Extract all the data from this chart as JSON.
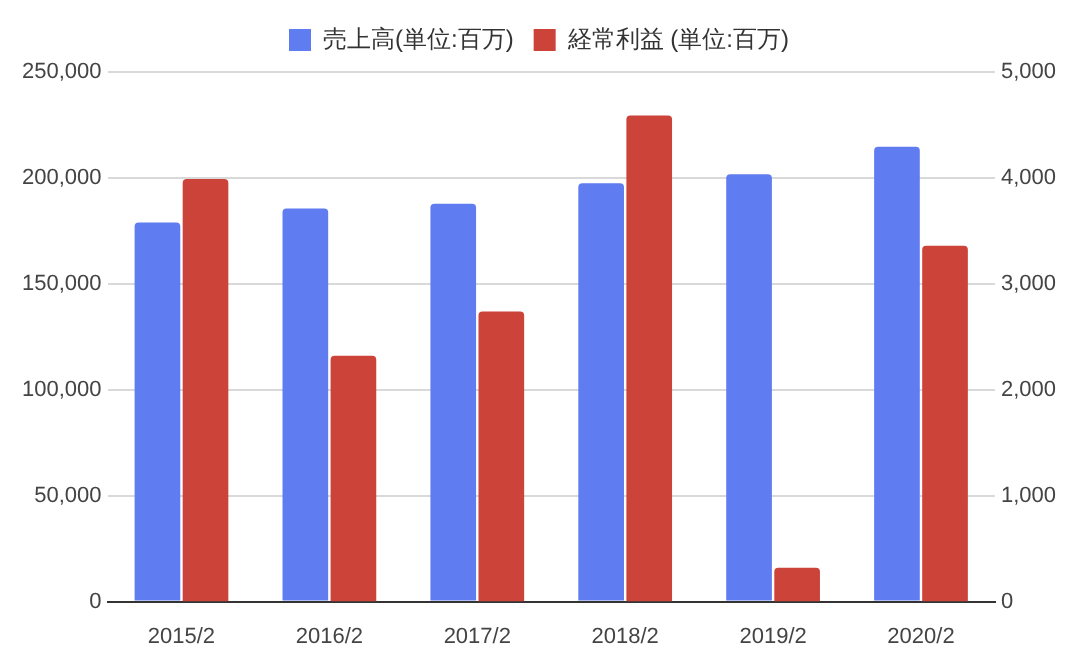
{
  "chart_data": {
    "type": "bar",
    "categories": [
      "2015/2",
      "2016/2",
      "2017/2",
      "2018/2",
      "2019/2",
      "2020/2"
    ],
    "series": [
      {
        "name": "売上高(単位:百万)",
        "color": "#5f7cf0",
        "values": [
          179000,
          185600,
          187800,
          197500,
          201700,
          214700
        ]
      },
      {
        "name": "経常利益 (単位:百万)",
        "color": "#cc4339",
        "axis": "y2",
        "values": [
          3990,
          2320,
          2740,
          4590,
          320,
          3360
        ]
      }
    ],
    "ylim": [
      0,
      250000
    ],
    "yticks": [
      {
        "value": 0,
        "label": "0"
      },
      {
        "value": 50000,
        "label": "50,000"
      },
      {
        "value": 100000,
        "label": "100,000"
      },
      {
        "value": 150000,
        "label": "150,000"
      },
      {
        "value": 200000,
        "label": "200,000"
      },
      {
        "value": 250000,
        "label": "250,000"
      }
    ],
    "y2lim": [
      0,
      5000
    ],
    "y2ticks": [
      {
        "value": 0,
        "label": "0"
      },
      {
        "value": 1000,
        "label": "1,000"
      },
      {
        "value": 2000,
        "label": "2,000"
      },
      {
        "value": 3000,
        "label": "3,000"
      },
      {
        "value": 4000,
        "label": "4,000"
      },
      {
        "value": 5000,
        "label": "5,000"
      }
    ],
    "grid": "y",
    "legend": "top"
  }
}
